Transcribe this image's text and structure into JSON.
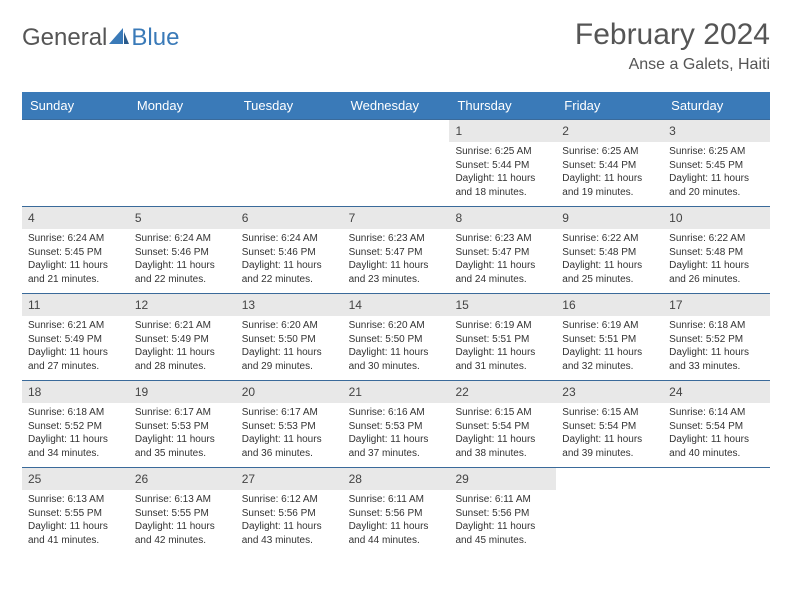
{
  "logo": {
    "text1": "General",
    "text2": "Blue"
  },
  "title": "February 2024",
  "location": "Anse a Galets, Haiti",
  "colors": {
    "header_bg": "#3a7ab8",
    "header_text": "#ffffff",
    "daynum_bg": "#e8e8e8",
    "border": "#3a6a9a",
    "logo_blue": "#3a7ab8",
    "text": "#333333"
  },
  "weekdays": [
    "Sunday",
    "Monday",
    "Tuesday",
    "Wednesday",
    "Thursday",
    "Friday",
    "Saturday"
  ],
  "weeks": [
    [
      {
        "empty": true
      },
      {
        "empty": true
      },
      {
        "empty": true
      },
      {
        "empty": true
      },
      {
        "num": "1",
        "sunrise": "Sunrise: 6:25 AM",
        "sunset": "Sunset: 5:44 PM",
        "daylight": "Daylight: 11 hours and 18 minutes."
      },
      {
        "num": "2",
        "sunrise": "Sunrise: 6:25 AM",
        "sunset": "Sunset: 5:44 PM",
        "daylight": "Daylight: 11 hours and 19 minutes."
      },
      {
        "num": "3",
        "sunrise": "Sunrise: 6:25 AM",
        "sunset": "Sunset: 5:45 PM",
        "daylight": "Daylight: 11 hours and 20 minutes."
      }
    ],
    [
      {
        "num": "4",
        "sunrise": "Sunrise: 6:24 AM",
        "sunset": "Sunset: 5:45 PM",
        "daylight": "Daylight: 11 hours and 21 minutes."
      },
      {
        "num": "5",
        "sunrise": "Sunrise: 6:24 AM",
        "sunset": "Sunset: 5:46 PM",
        "daylight": "Daylight: 11 hours and 22 minutes."
      },
      {
        "num": "6",
        "sunrise": "Sunrise: 6:24 AM",
        "sunset": "Sunset: 5:46 PM",
        "daylight": "Daylight: 11 hours and 22 minutes."
      },
      {
        "num": "7",
        "sunrise": "Sunrise: 6:23 AM",
        "sunset": "Sunset: 5:47 PM",
        "daylight": "Daylight: 11 hours and 23 minutes."
      },
      {
        "num": "8",
        "sunrise": "Sunrise: 6:23 AM",
        "sunset": "Sunset: 5:47 PM",
        "daylight": "Daylight: 11 hours and 24 minutes."
      },
      {
        "num": "9",
        "sunrise": "Sunrise: 6:22 AM",
        "sunset": "Sunset: 5:48 PM",
        "daylight": "Daylight: 11 hours and 25 minutes."
      },
      {
        "num": "10",
        "sunrise": "Sunrise: 6:22 AM",
        "sunset": "Sunset: 5:48 PM",
        "daylight": "Daylight: 11 hours and 26 minutes."
      }
    ],
    [
      {
        "num": "11",
        "sunrise": "Sunrise: 6:21 AM",
        "sunset": "Sunset: 5:49 PM",
        "daylight": "Daylight: 11 hours and 27 minutes."
      },
      {
        "num": "12",
        "sunrise": "Sunrise: 6:21 AM",
        "sunset": "Sunset: 5:49 PM",
        "daylight": "Daylight: 11 hours and 28 minutes."
      },
      {
        "num": "13",
        "sunrise": "Sunrise: 6:20 AM",
        "sunset": "Sunset: 5:50 PM",
        "daylight": "Daylight: 11 hours and 29 minutes."
      },
      {
        "num": "14",
        "sunrise": "Sunrise: 6:20 AM",
        "sunset": "Sunset: 5:50 PM",
        "daylight": "Daylight: 11 hours and 30 minutes."
      },
      {
        "num": "15",
        "sunrise": "Sunrise: 6:19 AM",
        "sunset": "Sunset: 5:51 PM",
        "daylight": "Daylight: 11 hours and 31 minutes."
      },
      {
        "num": "16",
        "sunrise": "Sunrise: 6:19 AM",
        "sunset": "Sunset: 5:51 PM",
        "daylight": "Daylight: 11 hours and 32 minutes."
      },
      {
        "num": "17",
        "sunrise": "Sunrise: 6:18 AM",
        "sunset": "Sunset: 5:52 PM",
        "daylight": "Daylight: 11 hours and 33 minutes."
      }
    ],
    [
      {
        "num": "18",
        "sunrise": "Sunrise: 6:18 AM",
        "sunset": "Sunset: 5:52 PM",
        "daylight": "Daylight: 11 hours and 34 minutes."
      },
      {
        "num": "19",
        "sunrise": "Sunrise: 6:17 AM",
        "sunset": "Sunset: 5:53 PM",
        "daylight": "Daylight: 11 hours and 35 minutes."
      },
      {
        "num": "20",
        "sunrise": "Sunrise: 6:17 AM",
        "sunset": "Sunset: 5:53 PM",
        "daylight": "Daylight: 11 hours and 36 minutes."
      },
      {
        "num": "21",
        "sunrise": "Sunrise: 6:16 AM",
        "sunset": "Sunset: 5:53 PM",
        "daylight": "Daylight: 11 hours and 37 minutes."
      },
      {
        "num": "22",
        "sunrise": "Sunrise: 6:15 AM",
        "sunset": "Sunset: 5:54 PM",
        "daylight": "Daylight: 11 hours and 38 minutes."
      },
      {
        "num": "23",
        "sunrise": "Sunrise: 6:15 AM",
        "sunset": "Sunset: 5:54 PM",
        "daylight": "Daylight: 11 hours and 39 minutes."
      },
      {
        "num": "24",
        "sunrise": "Sunrise: 6:14 AM",
        "sunset": "Sunset: 5:54 PM",
        "daylight": "Daylight: 11 hours and 40 minutes."
      }
    ],
    [
      {
        "num": "25",
        "sunrise": "Sunrise: 6:13 AM",
        "sunset": "Sunset: 5:55 PM",
        "daylight": "Daylight: 11 hours and 41 minutes."
      },
      {
        "num": "26",
        "sunrise": "Sunrise: 6:13 AM",
        "sunset": "Sunset: 5:55 PM",
        "daylight": "Daylight: 11 hours and 42 minutes."
      },
      {
        "num": "27",
        "sunrise": "Sunrise: 6:12 AM",
        "sunset": "Sunset: 5:56 PM",
        "daylight": "Daylight: 11 hours and 43 minutes."
      },
      {
        "num": "28",
        "sunrise": "Sunrise: 6:11 AM",
        "sunset": "Sunset: 5:56 PM",
        "daylight": "Daylight: 11 hours and 44 minutes."
      },
      {
        "num": "29",
        "sunrise": "Sunrise: 6:11 AM",
        "sunset": "Sunset: 5:56 PM",
        "daylight": "Daylight: 11 hours and 45 minutes."
      },
      {
        "empty": true
      },
      {
        "empty": true
      }
    ]
  ]
}
